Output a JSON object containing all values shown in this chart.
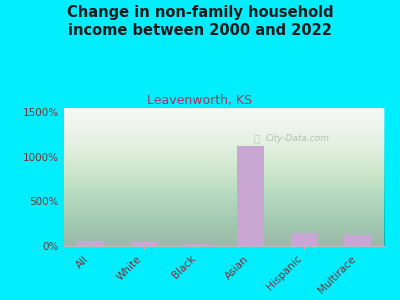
{
  "title": "Change in non-family household\nincome between 2000 and 2022",
  "subtitle": "Leavenworth, KS",
  "categories": [
    "All",
    "White",
    "Black",
    "Asian",
    "Hispanic",
    "Multirace"
  ],
  "values": [
    60,
    48,
    28,
    1120,
    148,
    118
  ],
  "bar_color": "#c8a8d2",
  "background_outer": "#00eeff",
  "background_inner_top": "#f5f5f5",
  "background_inner_bottom": "#d6ecd2",
  "title_color": "#1a1a1a",
  "subtitle_color": "#b03060",
  "axis_label_color": "#7a3030",
  "tick_label_color": "#7a3030",
  "yticks": [
    0,
    500,
    1000,
    1500
  ],
  "ytick_labels": [
    "0%",
    "500%",
    "1000%",
    "1500%"
  ],
  "ylim": [
    0,
    1550
  ],
  "watermark": "City-Data.com",
  "title_fontsize": 10.5,
  "subtitle_fontsize": 9
}
